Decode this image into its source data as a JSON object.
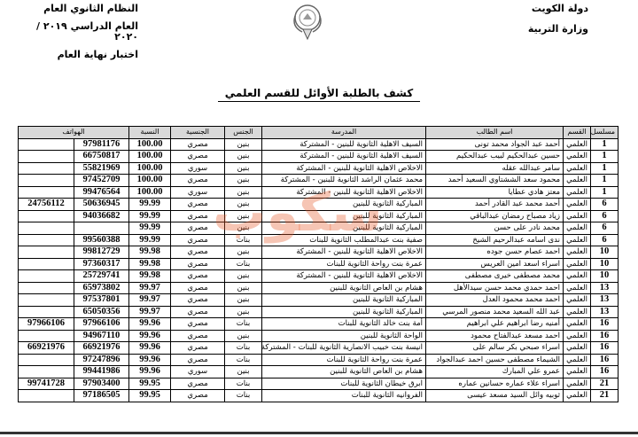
{
  "header": {
    "right_line1": "دولة الكويت",
    "right_line2": "وزارة التربية",
    "left_line1": "النظام الثانوي العام",
    "left_line2": "العام الدراسي ٢٠١٩ / ٢٠٢٠",
    "left_line3": "اختبار نهاية العام"
  },
  "title": "كشف بالطلبة الأوائل  للقسم العلمي",
  "watermark": "سكوب",
  "table": {
    "columns": [
      "مسلسل",
      "القسم",
      "اسم الطالب",
      "المدرسة",
      "الجنس",
      "الجنسية",
      "النسبة",
      "الهواتف"
    ],
    "rows": [
      [
        "1",
        "العلمي",
        "أحمد عبد الجواد محمد تونى",
        "السيف الاهلية الثانوية للبنين - المشتركة",
        "بنين",
        "مصري",
        "100.00",
        "97981176",
        ""
      ],
      [
        "1",
        "العلمي",
        "حسين عبدالحكيم لبيب عبدالحكيم",
        "السيف الاهلية الثانوية للبنين - المشتركة",
        "بنين",
        "مصري",
        "100.00",
        "66750817",
        ""
      ],
      [
        "1",
        "العلمي",
        "سامر عبدالله عقله",
        "الاخلاص الاهلية الثانوية للبنين - المشتركة",
        "بنين",
        "سوري",
        "100.00",
        "55821969",
        ""
      ],
      [
        "1",
        "العلمي",
        "محمود سعد الششتاوي السعيد أحمد",
        "محمد عثمان الراشد الثانوية للبنين - المشتركة",
        "بنين",
        "مصري",
        "100.00",
        "97452709",
        ""
      ],
      [
        "1",
        "العلمي",
        "معتز هادي عطايا",
        "الاخلاص الاهلية الثانوية للبنين - المشتركة",
        "بنين",
        "سوري",
        "100.00",
        "99476564",
        ""
      ],
      [
        "6",
        "العلمي",
        "أحمد محمد عبد القادر أحمد",
        "المباركية الثانوية للبنين",
        "بنين",
        "مصري",
        "99.99",
        "50636945",
        "24756112"
      ],
      [
        "6",
        "العلمي",
        "زياد مصباح رمضان عبدالباقي",
        "المباركية الثانوية للبنين",
        "بنين",
        "مصري",
        "99.99",
        "94036682",
        ""
      ],
      [
        "6",
        "العلمي",
        "محمد نادر على حسن",
        "المباركية الثانوية للبنين",
        "بنين",
        "مصري",
        "99.99",
        "",
        ""
      ],
      [
        "6",
        "العلمي",
        "ندى اسامه عبدالرحيم الشيخ",
        "صفية بنت عبدالمطلب الثانوية للبنات",
        "بنات",
        "مصري",
        "99.99",
        "99560388",
        ""
      ],
      [
        "10",
        "العلمي",
        "احمد عصام حسن جوده",
        "الاخلاص الاهلية الثانوية للبنين - المشتركة",
        "بنين",
        "مصري",
        "99.98",
        "99812729",
        ""
      ],
      [
        "10",
        "العلمي",
        "اسراء اسعد امين العريس",
        "عمرة بنت رواحة الثانوية للبنات",
        "بنات",
        "مصري",
        "99.98",
        "97360317",
        ""
      ],
      [
        "10",
        "العلمي",
        "محمد مصطفى خيرى مصطفى",
        "الاخلاص الاهلية الثانوية للبنين - المشتركة",
        "بنين",
        "مصري",
        "99.98",
        "25729741",
        ""
      ],
      [
        "13",
        "العلمي",
        "احمد حمدي محمد حسن سيدالأهل",
        "هشام بن العاص الثانوية للبنين",
        "بنين",
        "مصري",
        "99.97",
        "65973802",
        ""
      ],
      [
        "13",
        "العلمي",
        "احمد محمد محمود العدل",
        "المباركية الثانوية للبنين",
        "بنين",
        "مصري",
        "99.97",
        "97537801",
        ""
      ],
      [
        "13",
        "العلمي",
        "عبد الله السعيد محمد منصور المرسي",
        "المباركية الثانوية للبنين",
        "بنين",
        "مصري",
        "99.97",
        "65050356",
        ""
      ],
      [
        "16",
        "العلمي",
        "أمنيه رضا ابراهيم علي ابراهيم",
        "أمة بنت خالد الثانوية للبنات",
        "بنات",
        "مصري",
        "99.96",
        "97966106",
        "97966106"
      ],
      [
        "16",
        "العلمي",
        "احمد مسعد عبدالفتاح محمود",
        "الواحة الثانوية للبنين",
        "بنين",
        "مصري",
        "99.96",
        "94967110",
        ""
      ],
      [
        "16",
        "العلمي",
        "اسراء صبحي بكر سالم على",
        "انيسة بنت خبيب الانصارية الثانوية للبنات - المشتركة",
        "بنات",
        "مصري",
        "99.96",
        "66921976",
        "66921976"
      ],
      [
        "16",
        "العلمي",
        "الشيماء مصطفى حسين احمد عبدالجواد",
        "عمرة بنت رواحة الثانوية للبنات",
        "بنات",
        "مصري",
        "99.96",
        "97247896",
        ""
      ],
      [
        "16",
        "العلمي",
        "عمرو علي المبارك",
        "هشام بن العاص الثانوية للبنين",
        "بنين",
        "سوري",
        "99.96",
        "99441986",
        ""
      ],
      [
        "21",
        "العلمي",
        "اسراء علاء عماره حسانين عماره",
        "ابرق خيطان الثانوية للبنات",
        "بنات",
        "مصري",
        "99.95",
        "97903400",
        "99741728"
      ],
      [
        "21",
        "العلمي",
        "ثوبيه وائل السيد مسعد عيسى",
        "الفروانيه الثانوية للبنات",
        "بنات",
        "مصري",
        "99.95",
        "97186505",
        ""
      ]
    ]
  }
}
